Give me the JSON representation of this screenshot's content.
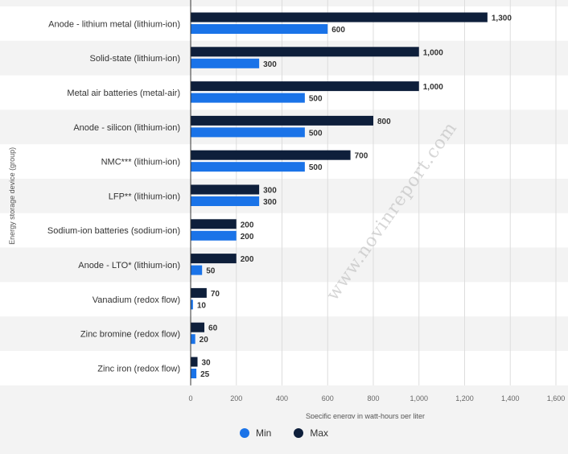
{
  "chart_data": {
    "type": "bar",
    "orientation": "horizontal",
    "categories": [
      "Anode - lithium metal (lithium-ion)",
      "Solid-state (lithium-ion)",
      "Metal air batteries (metal-air)",
      "Anode - silicon (lithium-ion)",
      "NMC*** (lithium-ion)",
      "LFP** (lithium-ion)",
      "Sodium-ion batteries (sodium-ion)",
      "Anode - LTO* (lithium-ion)",
      "Vanadium (redox flow)",
      "Zinc bromine (redox flow)",
      "Zinc iron (redox flow)"
    ],
    "series": [
      {
        "name": "Max",
        "color": "#0e1f3b",
        "values": [
          1300,
          1000,
          1000,
          800,
          700,
          300,
          200,
          200,
          70,
          60,
          30
        ],
        "labels": [
          "1,300",
          "1,000",
          "1,000",
          "800",
          "700",
          "300",
          "200",
          "200",
          "70",
          "60",
          "30"
        ]
      },
      {
        "name": "Min",
        "color": "#1a73e8",
        "values": [
          600,
          300,
          500,
          500,
          500,
          300,
          200,
          50,
          10,
          20,
          25
        ],
        "labels": [
          "600",
          "300",
          "500",
          "500",
          "500",
          "300",
          "200",
          "50",
          "10",
          "20",
          "25"
        ]
      }
    ],
    "xlabel": "Specific energy in watt-hours per liter",
    "ylabel": "Energy storage device (group)",
    "xlim": [
      0,
      1600
    ],
    "xticks": [
      0,
      200,
      400,
      600,
      800,
      1000,
      1200,
      1400,
      1600
    ],
    "xtick_labels": [
      "0",
      "200",
      "400",
      "600",
      "800",
      "1,000",
      "1,200",
      "1,400",
      "1,600"
    ],
    "grid": true,
    "legend_position": "bottom-center"
  },
  "legend": {
    "items": [
      {
        "label": "Min",
        "color": "#1a73e8"
      },
      {
        "label": "Max",
        "color": "#0e1f3b"
      }
    ]
  },
  "watermark": "www.novinreport.com"
}
